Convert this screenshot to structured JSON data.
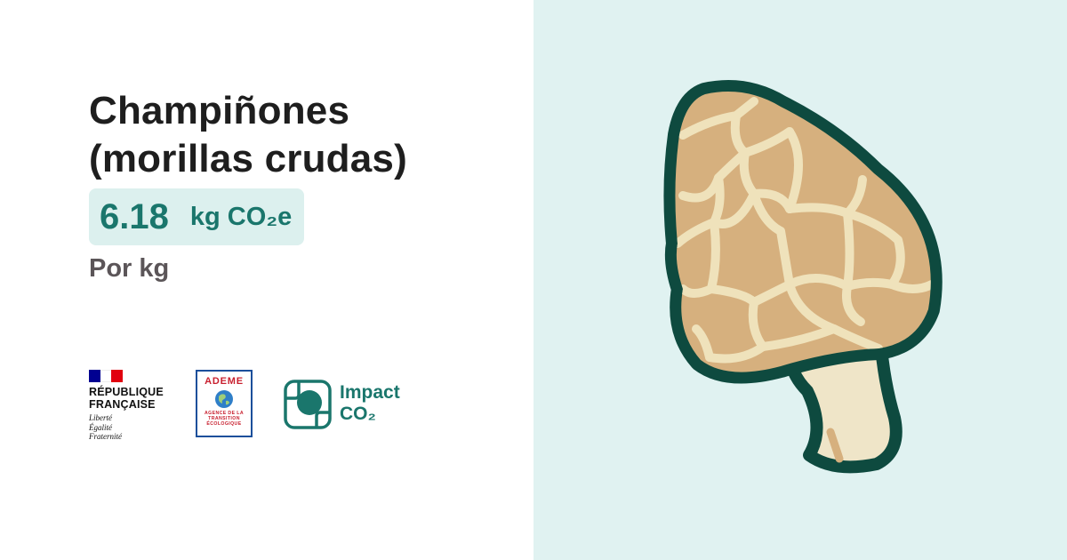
{
  "title": {
    "line1": "Champiñones",
    "line2": "(morillas crudas)"
  },
  "value": {
    "number": "6.18",
    "unit": "kg CO₂e"
  },
  "per_unit": "Por kg",
  "logos": {
    "republique": {
      "title_line1": "RÉPUBLIQUE",
      "title_line2": "FRANÇAISE",
      "motto_line1": "Liberté",
      "motto_line2": "Égalité",
      "motto_line3": "Fraternité",
      "flag_colors": [
        "#000091",
        "#ffffff",
        "#e1000f"
      ]
    },
    "ademe": {
      "name": "ADEME",
      "subtitle": "AGENCE DE LA TRANSITION ÉCOLOGIQUE",
      "color": "#c8202f",
      "border_color": "#1b4f9b"
    },
    "impact_co2": {
      "line1": "Impact",
      "line2": "CO₂",
      "color": "#1a766c"
    }
  },
  "colors": {
    "accent": "#1a766c",
    "value_background": "#dcf0ee",
    "illustration_background": "#e0f2f1",
    "mushroom_outline": "#0e4a3f",
    "mushroom_cap": "#d6b07e",
    "mushroom_ridges": "#efe2bb",
    "mushroom_stem": "#efe5c8"
  },
  "illustration": {
    "icon": "morel-mushroom-icon"
  }
}
